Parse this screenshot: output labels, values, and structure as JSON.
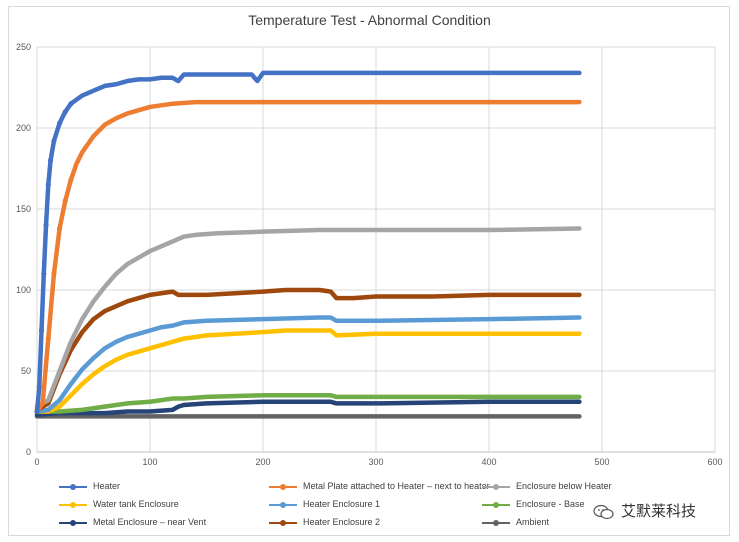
{
  "chart_data": {
    "type": "line",
    "title": "Temperature Test - Abnormal Condition",
    "xlabel": "",
    "ylabel": "",
    "xlim": [
      0,
      600
    ],
    "ylim": [
      0,
      250
    ],
    "x_ticks": [
      0,
      100,
      200,
      300,
      400,
      500,
      600
    ],
    "y_ticks": [
      0,
      50,
      100,
      150,
      200,
      250
    ],
    "grid": true,
    "legend_position": "bottom",
    "series": [
      {
        "name": "Heater",
        "color": "#4472C4",
        "points": [
          [
            0,
            25
          ],
          [
            2,
            40
          ],
          [
            4,
            75
          ],
          [
            6,
            110
          ],
          [
            8,
            140
          ],
          [
            10,
            165
          ],
          [
            12,
            180
          ],
          [
            15,
            192
          ],
          [
            20,
            203
          ],
          [
            25,
            210
          ],
          [
            30,
            215
          ],
          [
            40,
            220
          ],
          [
            50,
            223
          ],
          [
            60,
            226
          ],
          [
            70,
            227
          ],
          [
            80,
            229
          ],
          [
            90,
            230
          ],
          [
            100,
            230
          ],
          [
            110,
            231
          ],
          [
            120,
            231
          ],
          [
            125,
            229
          ],
          [
            130,
            233
          ],
          [
            150,
            233
          ],
          [
            190,
            233
          ],
          [
            195,
            229
          ],
          [
            200,
            234
          ],
          [
            250,
            234
          ],
          [
            300,
            234
          ],
          [
            400,
            234
          ],
          [
            480,
            234
          ]
        ]
      },
      {
        "name": "Metal Plate attached to Heater – next to heater",
        "color": "#ED7D31",
        "points": [
          [
            0,
            25
          ],
          [
            5,
            30
          ],
          [
            10,
            70
          ],
          [
            15,
            110
          ],
          [
            20,
            138
          ],
          [
            25,
            155
          ],
          [
            30,
            168
          ],
          [
            35,
            178
          ],
          [
            40,
            185
          ],
          [
            50,
            195
          ],
          [
            60,
            202
          ],
          [
            70,
            206
          ],
          [
            80,
            209
          ],
          [
            90,
            211
          ],
          [
            100,
            213
          ],
          [
            110,
            214
          ],
          [
            120,
            215
          ],
          [
            140,
            216
          ],
          [
            200,
            216
          ],
          [
            300,
            216
          ],
          [
            400,
            216
          ],
          [
            480,
            216
          ]
        ]
      },
      {
        "name": "Enclosure below Heater",
        "color": "#A5A5A5",
        "points": [
          [
            0,
            28
          ],
          [
            10,
            32
          ],
          [
            20,
            50
          ],
          [
            30,
            68
          ],
          [
            40,
            82
          ],
          [
            50,
            93
          ],
          [
            60,
            102
          ],
          [
            70,
            110
          ],
          [
            80,
            116
          ],
          [
            90,
            120
          ],
          [
            100,
            124
          ],
          [
            110,
            127
          ],
          [
            120,
            130
          ],
          [
            130,
            133
          ],
          [
            140,
            134
          ],
          [
            160,
            135
          ],
          [
            200,
            136
          ],
          [
            250,
            137
          ],
          [
            300,
            137
          ],
          [
            400,
            137
          ],
          [
            480,
            138
          ]
        ]
      },
      {
        "name": "Water tank Enclosure",
        "color": "#FFC000",
        "points": [
          [
            0,
            25
          ],
          [
            10,
            25
          ],
          [
            20,
            28
          ],
          [
            30,
            35
          ],
          [
            40,
            42
          ],
          [
            50,
            48
          ],
          [
            60,
            53
          ],
          [
            70,
            57
          ],
          [
            80,
            60
          ],
          [
            90,
            62
          ],
          [
            100,
            64
          ],
          [
            110,
            66
          ],
          [
            120,
            68
          ],
          [
            130,
            70
          ],
          [
            150,
            72
          ],
          [
            200,
            74
          ],
          [
            220,
            75
          ],
          [
            250,
            75
          ],
          [
            260,
            75
          ],
          [
            265,
            72
          ],
          [
            300,
            73
          ],
          [
            400,
            73
          ],
          [
            480,
            73
          ]
        ]
      },
      {
        "name": "Heater Enclosure 1",
        "color": "#5B9BD5",
        "points": [
          [
            0,
            25
          ],
          [
            10,
            26
          ],
          [
            20,
            32
          ],
          [
            30,
            42
          ],
          [
            40,
            51
          ],
          [
            50,
            58
          ],
          [
            60,
            64
          ],
          [
            70,
            68
          ],
          [
            80,
            71
          ],
          [
            90,
            73
          ],
          [
            100,
            75
          ],
          [
            110,
            77
          ],
          [
            120,
            78
          ],
          [
            130,
            80
          ],
          [
            150,
            81
          ],
          [
            200,
            82
          ],
          [
            250,
            83
          ],
          [
            260,
            83
          ],
          [
            265,
            81
          ],
          [
            300,
            81
          ],
          [
            400,
            82
          ],
          [
            480,
            83
          ]
        ]
      },
      {
        "name": "Enclosure - Base",
        "color": "#70AD47",
        "points": [
          [
            0,
            25
          ],
          [
            20,
            25
          ],
          [
            40,
            26
          ],
          [
            60,
            28
          ],
          [
            80,
            30
          ],
          [
            100,
            31
          ],
          [
            120,
            33
          ],
          [
            130,
            33
          ],
          [
            150,
            34
          ],
          [
            200,
            35
          ],
          [
            250,
            35
          ],
          [
            260,
            35
          ],
          [
            265,
            34
          ],
          [
            300,
            34
          ],
          [
            400,
            34
          ],
          [
            480,
            34
          ]
        ]
      },
      {
        "name": "Metal Enclosure – near Vent",
        "color": "#264478",
        "points": [
          [
            0,
            23
          ],
          [
            20,
            24
          ],
          [
            40,
            24
          ],
          [
            60,
            24
          ],
          [
            80,
            25
          ],
          [
            100,
            25
          ],
          [
            120,
            26
          ],
          [
            125,
            28
          ],
          [
            130,
            29
          ],
          [
            150,
            30
          ],
          [
            200,
            31
          ],
          [
            250,
            31
          ],
          [
            260,
            31
          ],
          [
            265,
            30
          ],
          [
            300,
            30
          ],
          [
            400,
            31
          ],
          [
            480,
            31
          ]
        ]
      },
      {
        "name": "Heater Enclosure 2",
        "color": "#9E480E",
        "points": [
          [
            0,
            26
          ],
          [
            10,
            30
          ],
          [
            20,
            48
          ],
          [
            30,
            63
          ],
          [
            40,
            74
          ],
          [
            50,
            82
          ],
          [
            60,
            87
          ],
          [
            70,
            90
          ],
          [
            80,
            93
          ],
          [
            90,
            95
          ],
          [
            100,
            97
          ],
          [
            110,
            98
          ],
          [
            120,
            99
          ],
          [
            125,
            97
          ],
          [
            130,
            97
          ],
          [
            150,
            97
          ],
          [
            200,
            99
          ],
          [
            220,
            100
          ],
          [
            250,
            100
          ],
          [
            260,
            99
          ],
          [
            265,
            95
          ],
          [
            280,
            95
          ],
          [
            300,
            96
          ],
          [
            350,
            96
          ],
          [
            400,
            97
          ],
          [
            450,
            97
          ],
          [
            480,
            97
          ]
        ]
      },
      {
        "name": "Ambient",
        "color": "#636363",
        "points": [
          [
            0,
            22
          ],
          [
            100,
            22
          ],
          [
            200,
            22
          ],
          [
            300,
            22
          ],
          [
            400,
            22
          ],
          [
            480,
            22
          ]
        ]
      }
    ]
  },
  "watermark": {
    "text": "艾默莱科技"
  }
}
